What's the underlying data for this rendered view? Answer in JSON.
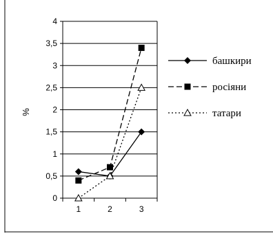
{
  "chart_data": {
    "type": "line",
    "x": [
      "1",
      "2",
      "3"
    ],
    "xlabel": "",
    "ylabel": "%",
    "ylim": [
      0,
      4
    ],
    "yticks": [
      "0",
      "0,5",
      "1",
      "1,5",
      "2",
      "2,5",
      "3",
      "3,5",
      "4"
    ],
    "grid": "horizontal",
    "legend_position": "right",
    "series": [
      {
        "name": "башкири",
        "values": [
          0.6,
          0.5,
          1.5
        ],
        "marker": "diamond-filled",
        "line": "solid"
      },
      {
        "name": "росіяни",
        "values": [
          0.4,
          0.7,
          3.4
        ],
        "marker": "square-filled",
        "line": "dashed"
      },
      {
        "name": "татари",
        "values": [
          0.0,
          0.5,
          2.5
        ],
        "marker": "triangle-open",
        "line": "dotted"
      }
    ]
  }
}
